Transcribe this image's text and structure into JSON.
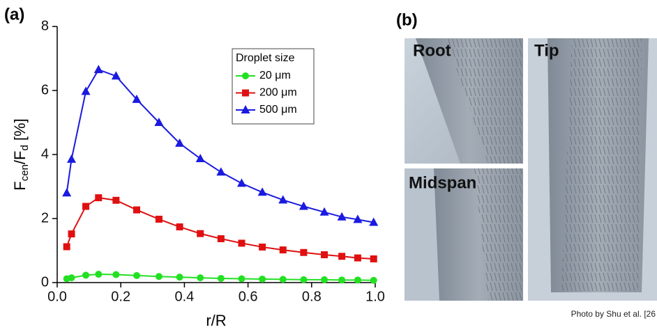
{
  "chart_data": {
    "type": "line",
    "panel_label": "(a)",
    "y_label_parts": [
      "F",
      "cen",
      "/F",
      "d",
      " [%]"
    ],
    "x_label": "r/R",
    "legend_title": "Droplet size",
    "x": [
      0.03,
      0.045,
      0.09,
      0.13,
      0.185,
      0.25,
      0.32,
      0.385,
      0.45,
      0.515,
      0.58,
      0.645,
      0.71,
      0.775,
      0.84,
      0.895,
      0.945,
      0.995
    ],
    "series": [
      {
        "name": "20 μm",
        "color": "#22e022",
        "marker": "circle",
        "values": [
          0.12,
          0.15,
          0.23,
          0.26,
          0.25,
          0.22,
          0.19,
          0.17,
          0.15,
          0.13,
          0.12,
          0.11,
          0.1,
          0.09,
          0.09,
          0.08,
          0.08,
          0.07
        ]
      },
      {
        "name": "200 μm",
        "color": "#e01010",
        "marker": "square",
        "values": [
          1.12,
          1.52,
          2.38,
          2.65,
          2.57,
          2.27,
          1.98,
          1.74,
          1.53,
          1.37,
          1.23,
          1.11,
          1.02,
          0.94,
          0.87,
          0.82,
          0.77,
          0.74
        ]
      },
      {
        "name": "500 μm",
        "color": "#1a1ae0",
        "marker": "triangle",
        "values": [
          2.8,
          3.85,
          5.97,
          6.65,
          6.45,
          5.72,
          5.0,
          4.35,
          3.87,
          3.45,
          3.1,
          2.82,
          2.58,
          2.38,
          2.2,
          2.05,
          1.97,
          1.88
        ]
      }
    ],
    "xlim": [
      0,
      1
    ],
    "ylim": [
      0,
      8
    ],
    "xticks": [
      {
        "value": 0,
        "label": "0.0"
      },
      0.2,
      0.4,
      0.6,
      0.8,
      {
        "value": 1,
        "label": "1.0"
      }
    ],
    "yticks": [
      0,
      2,
      4,
      6,
      8
    ]
  },
  "panel_b": {
    "label": "(b)",
    "photos": [
      "Root",
      "Midspan",
      "Tip"
    ],
    "credit": "Photo by Shu et al. [26"
  }
}
